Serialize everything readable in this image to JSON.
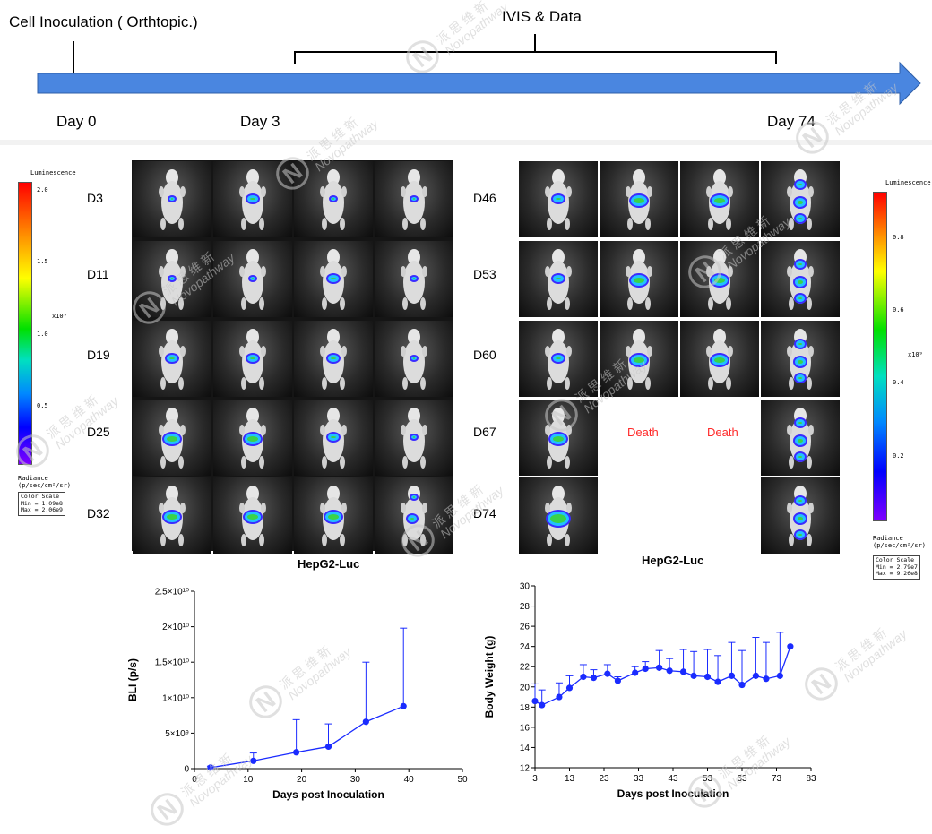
{
  "timeline": {
    "inoculation_label": "Cell Inoculation ( Orthtopic.)",
    "ivis_label": "IVIS & Data",
    "day0": "Day 0",
    "day3": "Day 3",
    "day74": "Day 74"
  },
  "left_panel": {
    "caption": "HepG2-Luc",
    "rows": [
      "D3",
      "D11",
      "D19",
      "D25",
      "D32"
    ],
    "colorbar": {
      "title": "Luminescence",
      "ticks": [
        "2.0",
        "1.5",
        "1.0",
        "0.5"
      ],
      "multiplier": "x10⁹",
      "unit_line1": "Radiance",
      "unit_line2": "(p/sec/cm²/sr)",
      "scale_title": "Color Scale",
      "scale_min": "Min = 1.09e8",
      "scale_max": "Max = 2.06e9"
    }
  },
  "right_panel": {
    "caption": "HepG2-Luc",
    "rows": [
      "D46",
      "D53",
      "D60",
      "D67",
      "D74"
    ],
    "death_label": "Death",
    "colorbar": {
      "title": "Luminescence",
      "ticks": [
        "0.8",
        "0.6",
        "0.4",
        "0.2"
      ],
      "multiplier": "x10⁹",
      "unit_line1": "Radiance",
      "unit_line2": "(p/sec/cm²/sr)",
      "scale_title": "Color Scale",
      "scale_min": "Min = 2.79e7",
      "scale_max": "Max = 9.26e8"
    }
  },
  "watermark": {
    "cn": "派 思 维 新",
    "en": "Novopathway"
  },
  "chart_data": [
    {
      "type": "line",
      "xlabel": "Days post Inoculation",
      "ylabel": "BLI (p/s)",
      "xlim": [
        0,
        50
      ],
      "ylim": [
        0,
        25000000000
      ],
      "xticks": [
        "0",
        "10",
        "20",
        "30",
        "40",
        "50"
      ],
      "yticks": [
        "0",
        "5×10⁹",
        "1×10¹⁰",
        "1.5×10¹⁰",
        "2×10¹⁰",
        "2.5×10¹⁰"
      ],
      "color": "#1a2bff",
      "series": [
        {
          "x": [
            3,
            11,
            19,
            25,
            32,
            39
          ],
          "y": [
            150000000,
            1100000000,
            2300000000,
            3100000000,
            6600000000,
            8800000000
          ],
          "err": [
            200000000,
            1100000000,
            4600000000,
            3200000000,
            8400000000,
            11000000000
          ]
        }
      ]
    },
    {
      "type": "line",
      "xlabel": "Days post Inoculation",
      "ylabel": "Body Weight (g)",
      "xlim": [
        3,
        83
      ],
      "ylim": [
        12,
        30
      ],
      "xticks": [
        "3",
        "13",
        "23",
        "33",
        "43",
        "53",
        "63",
        "73",
        "83"
      ],
      "yticks": [
        "12",
        "14",
        "16",
        "18",
        "20",
        "22",
        "24",
        "26",
        "28",
        "30"
      ],
      "color": "#1a2bff",
      "series": [
        {
          "x": [
            3,
            5,
            10,
            13,
            17,
            20,
            24,
            27,
            32,
            35,
            39,
            42,
            46,
            49,
            53,
            56,
            60,
            63,
            67,
            70,
            74,
            77
          ],
          "y": [
            18.6,
            18.2,
            19.0,
            19.9,
            21.0,
            20.9,
            21.3,
            20.6,
            21.4,
            21.8,
            21.9,
            21.6,
            21.5,
            21.1,
            21.0,
            20.5,
            21.1,
            20.2,
            21.1,
            20.8,
            21.1,
            24.0
          ],
          "err": [
            1.7,
            1.5,
            1.4,
            1.2,
            1.2,
            0.8,
            0.9,
            0.4,
            0.6,
            0.7,
            1.7,
            1.2,
            2.2,
            2.4,
            2.7,
            2.6,
            3.3,
            3.4,
            3.8,
            3.6,
            4.3,
            0.0
          ]
        }
      ]
    }
  ]
}
